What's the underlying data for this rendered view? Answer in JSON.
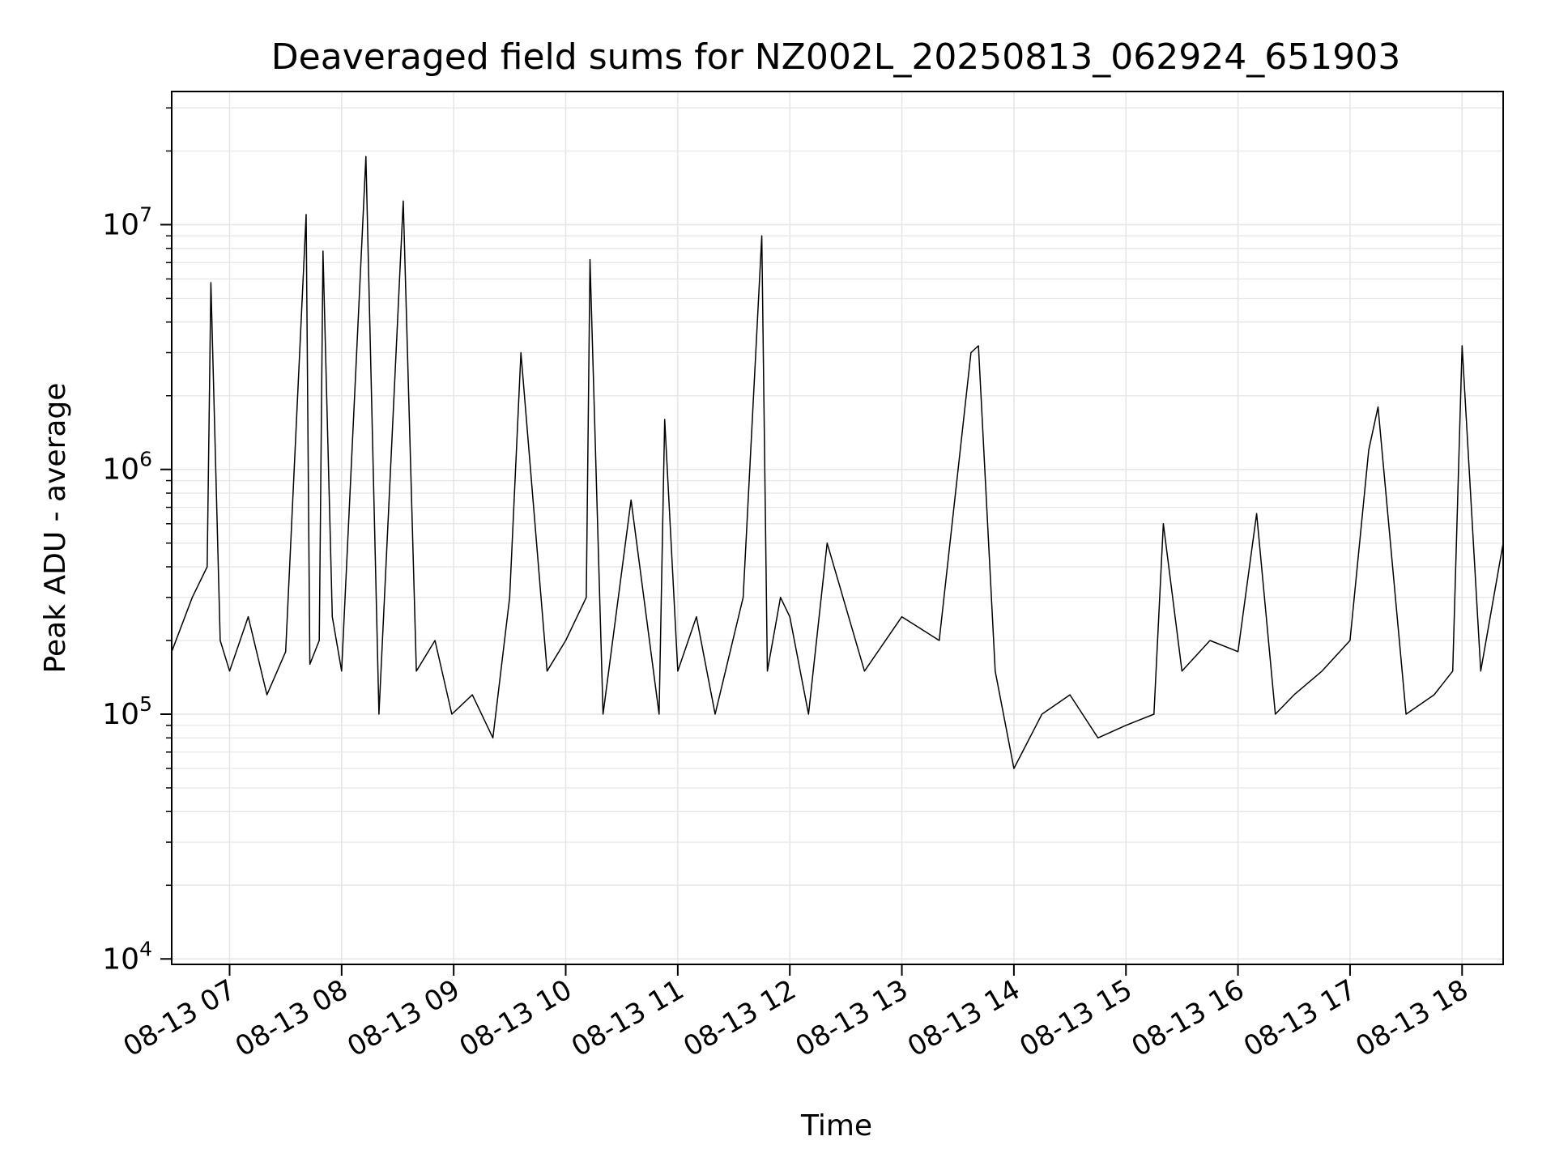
{
  "chart_data": {
    "type": "line",
    "title": "Deaveraged field sums for NZ002L_20250813_062924_651903",
    "xlabel": "Time",
    "ylabel": "Peak ADU - average",
    "x_ticks": [
      "08-13 07",
      "08-13 08",
      "08-13 09",
      "08-13 10",
      "08-13 11",
      "08-13 12",
      "08-13 13",
      "08-13 14",
      "08-13 15",
      "08-13 16",
      "08-13 17",
      "08-13 18"
    ],
    "x_range": [
      "08-13 06:29",
      "08-13 18:22"
    ],
    "y_scale": "log",
    "y_ticks": [
      {
        "value": 10000,
        "base": "10",
        "exp": "4"
      },
      {
        "value": 100000,
        "base": "10",
        "exp": "5"
      },
      {
        "value": 1000000,
        "base": "10",
        "exp": "6"
      },
      {
        "value": 10000000,
        "base": "10",
        "exp": "7"
      }
    ],
    "ylim": [
      9500,
      35000000
    ],
    "grid": true,
    "legend": "none",
    "line_color": "#000000",
    "grid_color": "#e5e5e5",
    "series": [
      {
        "x": [
          "06:29",
          "06:40",
          "06:48",
          "06:50",
          "06:55",
          "07:00",
          "07:10",
          "07:20",
          "07:30",
          "07:41",
          "07:43",
          "07:48",
          "07:50",
          "07:55",
          "08:00",
          "08:13",
          "08:20",
          "08:33",
          "08:40",
          "08:50",
          "08:59",
          "09:10",
          "09:21",
          "09:30",
          "09:36",
          "09:50",
          "10:00",
          "10:11",
          "10:13",
          "10:20",
          "10:35",
          "10:50",
          "10:53",
          "11:00",
          "11:10",
          "11:20",
          "11:35",
          "11:45",
          "11:48",
          "11:55",
          "12:00",
          "12:10",
          "12:20",
          "12:40",
          "13:00",
          "13:20",
          "13:37",
          "13:41",
          "13:50",
          "14:00",
          "14:15",
          "14:30",
          "14:45",
          "15:00",
          "15:15",
          "15:20",
          "15:30",
          "15:45",
          "16:00",
          "16:10",
          "16:20",
          "16:30",
          "16:45",
          "17:00",
          "17:10",
          "17:15",
          "17:30",
          "17:45",
          "17:55",
          "18:00",
          "18:10",
          "18:22"
        ],
        "values": [
          180000,
          300000,
          400000,
          5800000,
          200000,
          150000,
          250000,
          120000,
          180000,
          11000000,
          160000,
          200000,
          7800000,
          250000,
          150000,
          19000000,
          100000,
          12500000,
          150000,
          200000,
          100000,
          120000,
          80000,
          300000,
          3000000,
          150000,
          200000,
          300000,
          7200000,
          100000,
          750000,
          100000,
          1600000,
          150000,
          250000,
          100000,
          300000,
          9000000,
          150000,
          300000,
          250000,
          100000,
          500000,
          150000,
          250000,
          200000,
          3000000,
          3200000,
          150000,
          60000,
          100000,
          120000,
          80000,
          90000,
          100000,
          600000,
          150000,
          200000,
          180000,
          660000,
          100000,
          120000,
          150000,
          200000,
          1200000,
          1800000,
          100000,
          120000,
          150000,
          3200000,
          150000,
          500000
        ]
      }
    ]
  }
}
